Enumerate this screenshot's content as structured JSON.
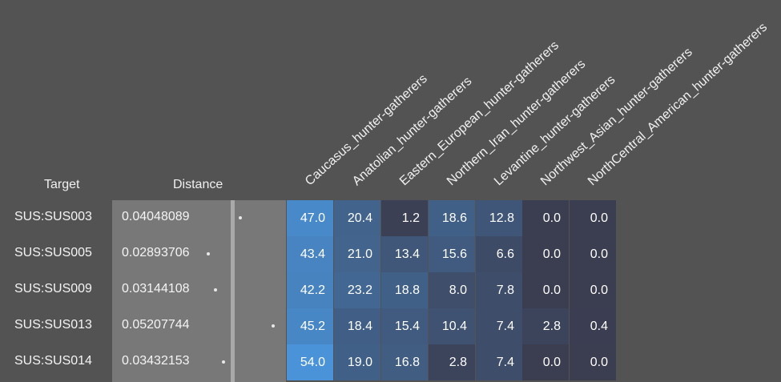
{
  "chart_data": {
    "type": "heatmap",
    "row_header": "Target",
    "distance_header": "Distance",
    "columns": [
      "Caucasus_hunter-gatherers",
      "Anatolian_hunter-gatherers",
      "Eastern_European_hunter-gatherers",
      "Northern_Iran_hunter-gatherers",
      "Levantine_hunter-gatherers",
      "Northwest_Asian_hunter-gatherers",
      "NorthCentral_American_hunter-gatherers"
    ],
    "rows": [
      {
        "target": "SUS:SUS003",
        "distance": "0.04048089",
        "values": [
          "47.0",
          "20.4",
          "1.2",
          "18.6",
          "12.8",
          "0.0",
          "0.0"
        ]
      },
      {
        "target": "SUS:SUS005",
        "distance": "0.02893706",
        "values": [
          "43.4",
          "21.0",
          "13.4",
          "15.6",
          "6.6",
          "0.0",
          "0.0"
        ]
      },
      {
        "target": "SUS:SUS009",
        "distance": "0.03144108",
        "values": [
          "42.2",
          "23.2",
          "18.8",
          "8.0",
          "7.8",
          "0.0",
          "0.0"
        ]
      },
      {
        "target": "SUS:SUS013",
        "distance": "0.05207744",
        "values": [
          "45.2",
          "18.4",
          "15.4",
          "10.4",
          "7.4",
          "2.8",
          "0.4"
        ]
      },
      {
        "target": "SUS:SUS014",
        "distance": "0.03432153",
        "values": [
          "54.0",
          "19.0",
          "16.8",
          "2.8",
          "7.4",
          "0.0",
          "0.0"
        ]
      }
    ],
    "color_scale": {
      "low": "#3b3d50",
      "high": "#4a93d8",
      "min": 0,
      "max": 54
    }
  }
}
